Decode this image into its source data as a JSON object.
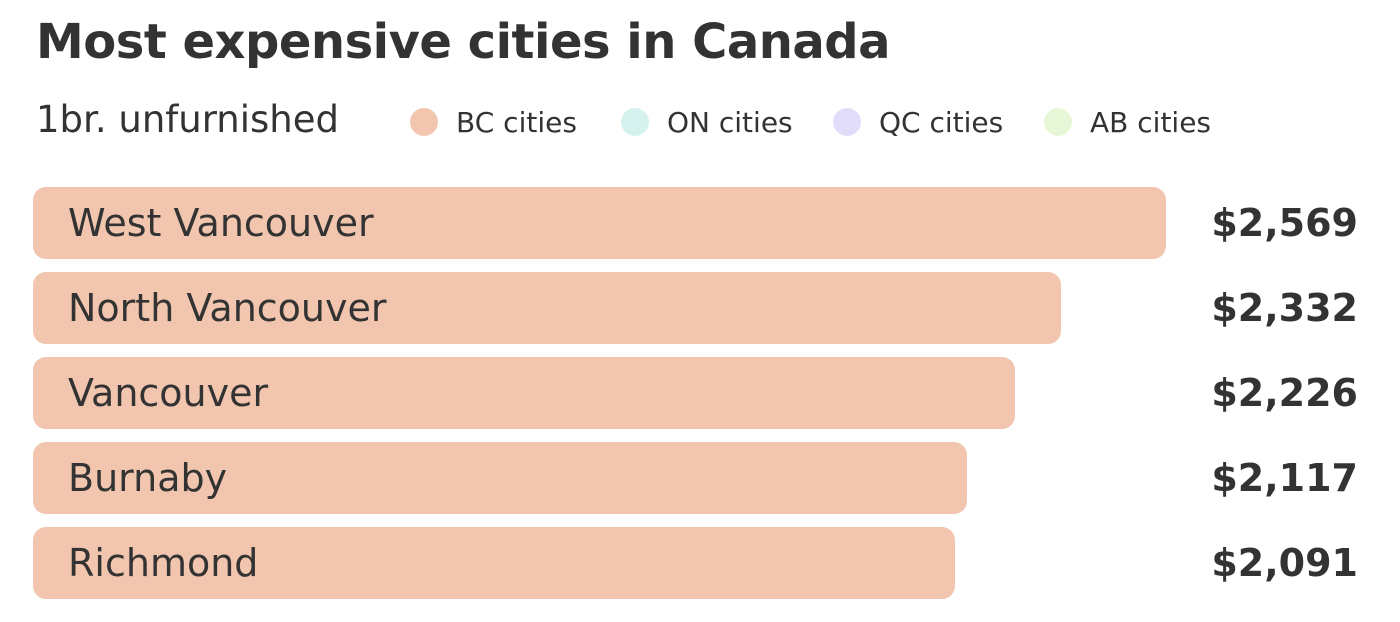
{
  "title": "Most expensive cities in Canada",
  "subtitle": "1br. unfurnished",
  "legend": [
    {
      "label": "BC cities",
      "color": "#f2c6ae"
    },
    {
      "label": "ON cities",
      "color": "#d6f2ee"
    },
    {
      "label": "QC cities",
      "color": "#e2dcfb"
    },
    {
      "label": "AB cities",
      "color": "#e6f7d8"
    }
  ],
  "chart_data": {
    "type": "bar",
    "orientation": "horizontal",
    "title": "Most expensive cities in Canada",
    "subtitle": "1br. unfurnished",
    "categories": [
      "West Vancouver",
      "North Vancouver",
      "Vancouver",
      "Burnaby",
      "Richmond"
    ],
    "values": [
      2569,
      2332,
      2226,
      2117,
      2091
    ],
    "value_labels": [
      "$2,569",
      "$2,332",
      "$2,226",
      "$2,117",
      "$2,091"
    ],
    "groups": [
      "BC cities",
      "BC cities",
      "BC cities",
      "BC cities",
      "BC cities"
    ],
    "xlim": [
      0,
      2569
    ],
    "grid": false,
    "legend_position": "top"
  }
}
